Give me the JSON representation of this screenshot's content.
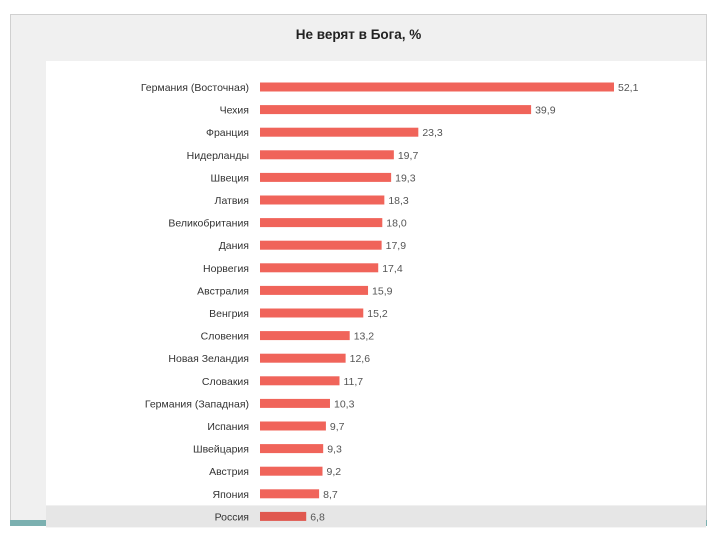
{
  "chart_data": {
    "type": "bar",
    "orientation": "horizontal",
    "title": "Не верят в Бога, %",
    "categories": [
      "Германия (Восточная)",
      "Чехия",
      "Франция",
      "Нидерланды",
      "Швеция",
      "Латвия",
      "Великобритания",
      "Дания",
      "Норвегия",
      "Австралия",
      "Венгрия",
      "Словения",
      "Новая Зеландия",
      "Словакия",
      "Германия (Западная)",
      "Испания",
      "Швейцария",
      "Австрия",
      "Япония",
      "Россия"
    ],
    "values": [
      52.1,
      39.9,
      23.3,
      19.7,
      19.3,
      18.3,
      18.0,
      17.9,
      17.4,
      15.9,
      15.2,
      13.2,
      12.6,
      11.7,
      10.3,
      9.7,
      9.3,
      9.2,
      8.7,
      6.8
    ],
    "value_labels": [
      "52,1",
      "39,9",
      "23,3",
      "19,7",
      "19,3",
      "18,3",
      "18,0",
      "17,9",
      "17,4",
      "15,9",
      "15,2",
      "13,2",
      "12,6",
      "11,7",
      "10,3",
      "9,7",
      "9,3",
      "9,2",
      "8,7",
      "6,8"
    ],
    "highlighted_category": "Россия",
    "xlim": [
      0,
      52.1
    ],
    "colors": {
      "bar": "#f0645a",
      "bar_highlight": "#e0584f",
      "highlight_row": "#e6e6e6"
    },
    "grid": false,
    "legend": "none"
  }
}
